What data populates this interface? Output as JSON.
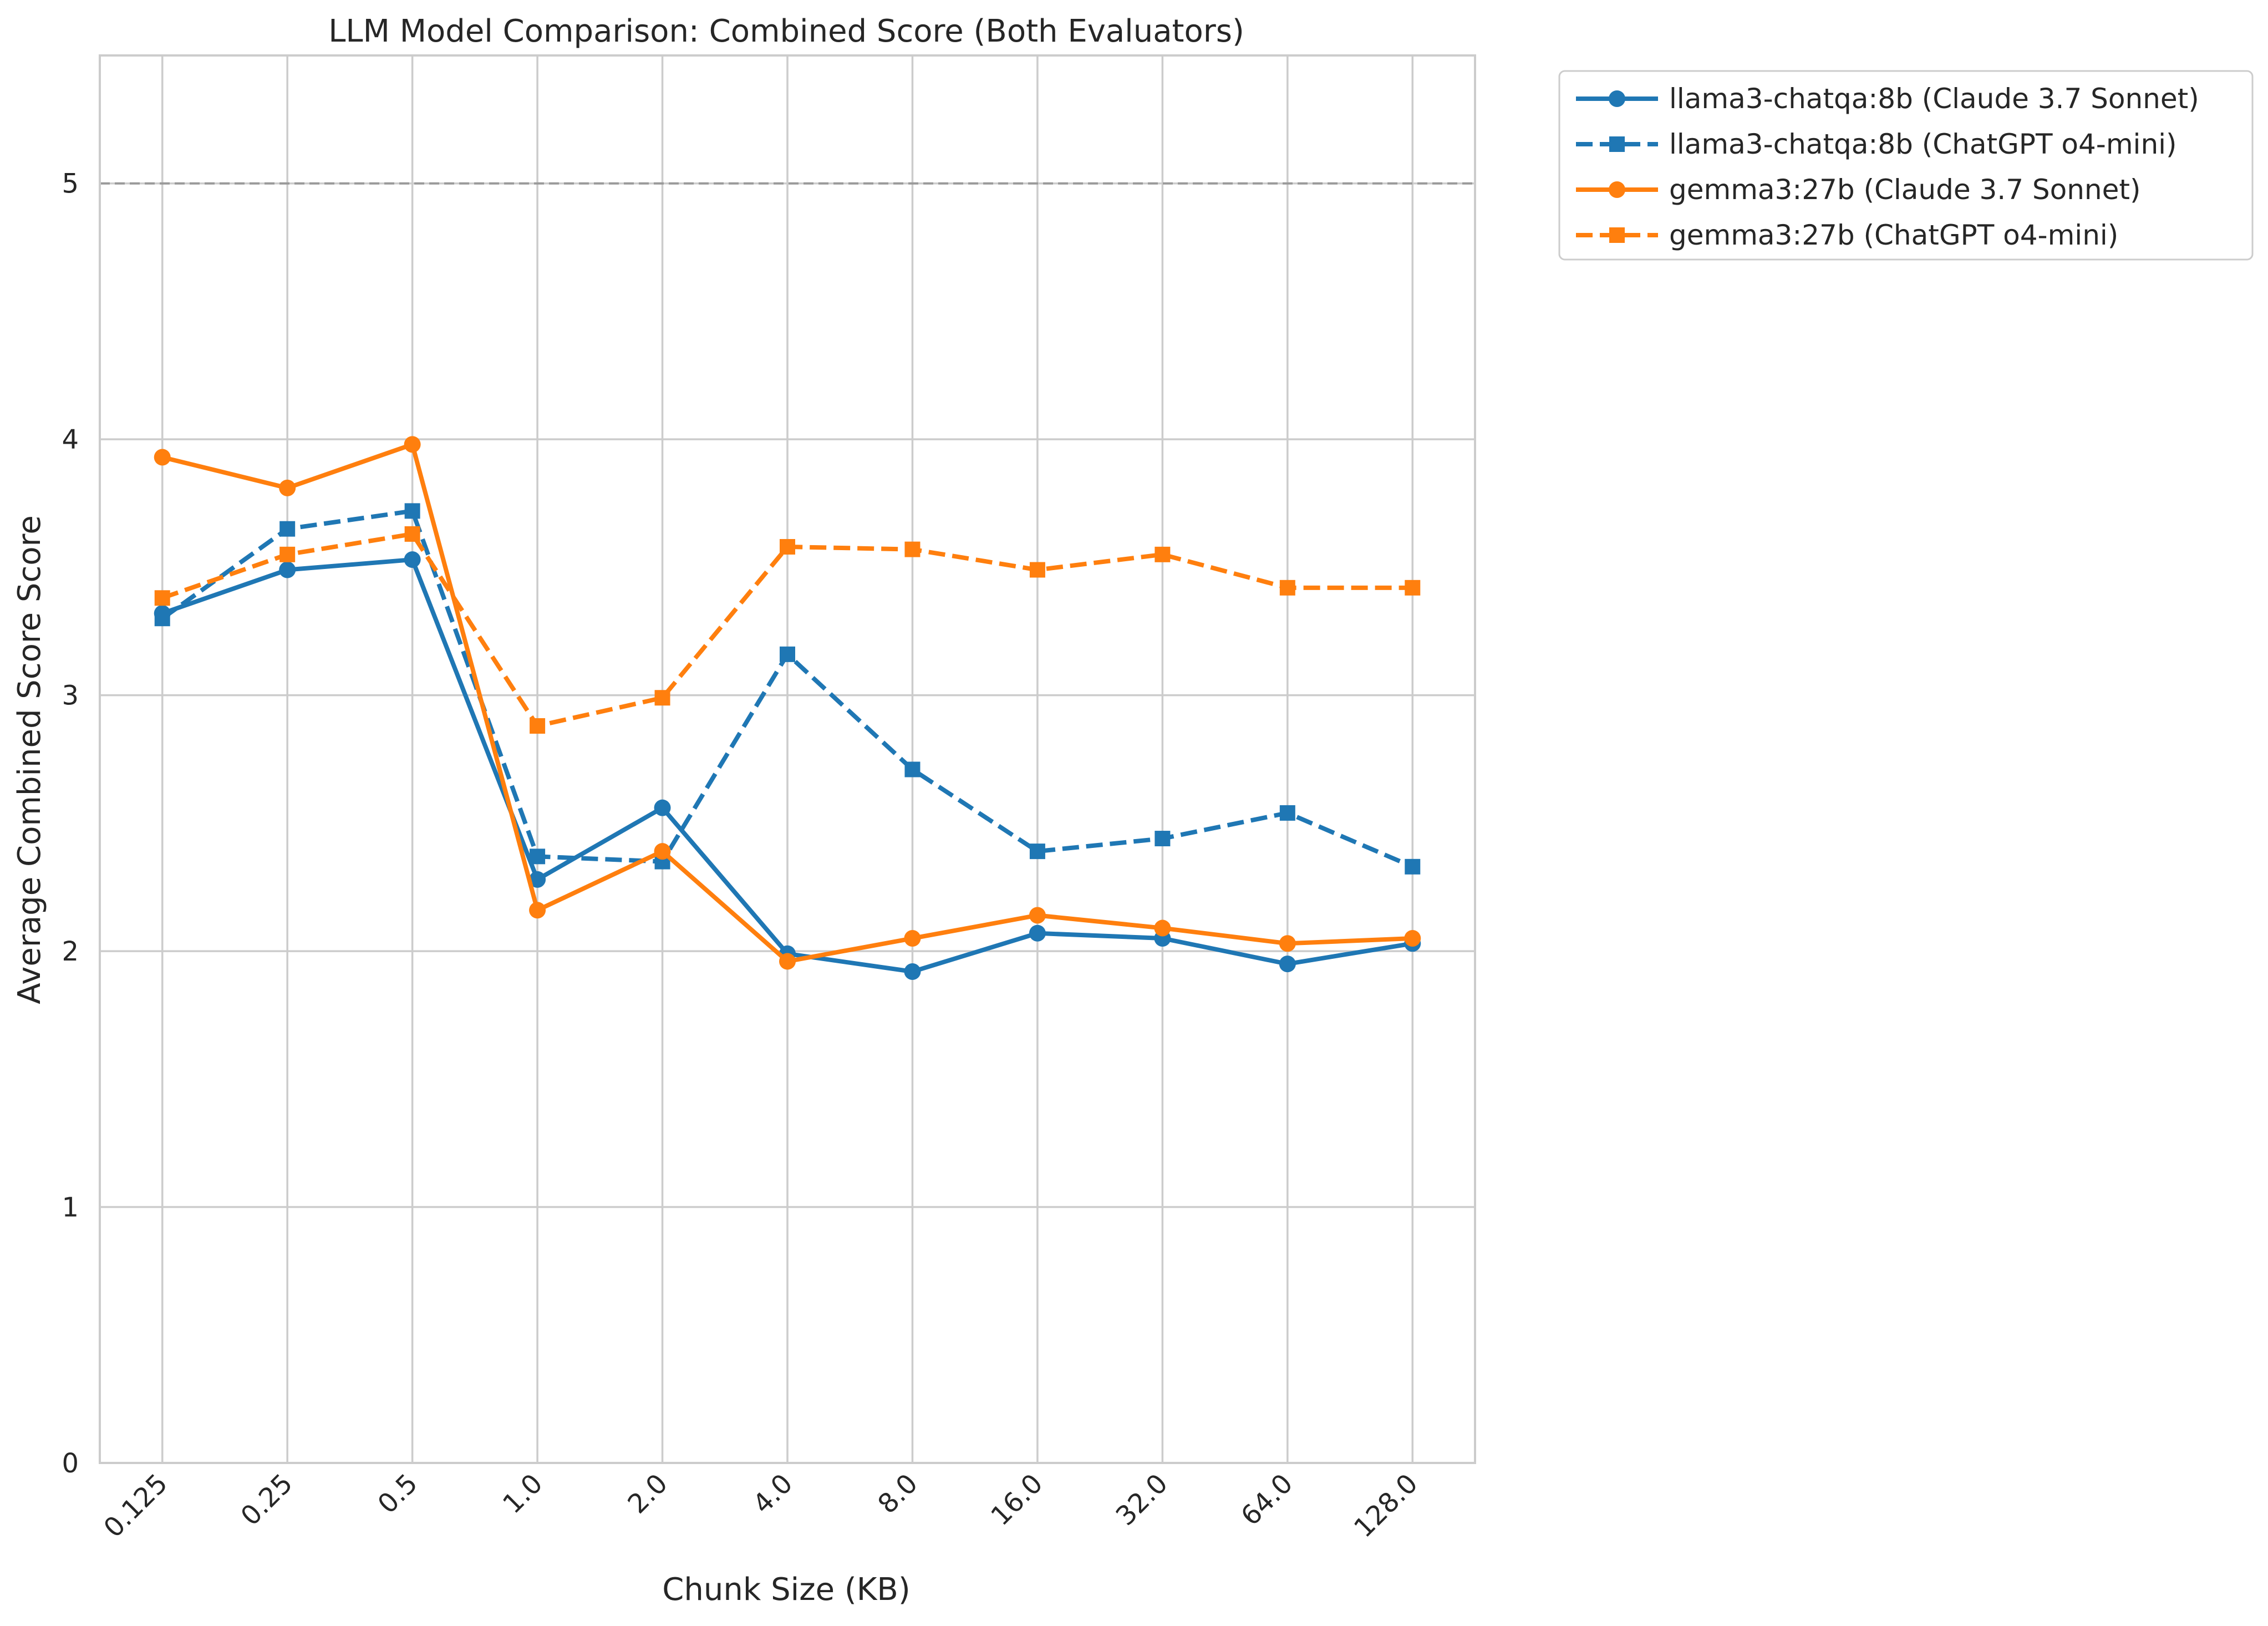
{
  "chart_data": {
    "type": "line",
    "title": "LLM Model Comparison: Combined Score (Both Evaluators)",
    "xlabel": "Chunk Size (KB)",
    "ylabel": "Average Combined Score Score",
    "categories": [
      "0.125",
      "0.25",
      "0.5",
      "1.0",
      "2.0",
      "4.0",
      "8.0",
      "16.0",
      "32.0",
      "64.0",
      "128.0"
    ],
    "ylim": [
      0,
      5.5
    ],
    "yticks": [
      "0",
      "1",
      "2",
      "3",
      "4",
      "5"
    ],
    "grid": true,
    "reference_line": {
      "y": 5,
      "style": "dashed",
      "color": "#999999"
    },
    "legend_placement": "outside upper right",
    "series": [
      {
        "name": "llama3-chatqa:8b (Claude 3.7 Sonnet)",
        "color": "#1f77b4",
        "linestyle": "solid",
        "marker": "circle",
        "values": [
          3.32,
          3.49,
          3.53,
          2.28,
          2.56,
          1.99,
          1.92,
          2.07,
          2.05,
          1.95,
          2.03
        ]
      },
      {
        "name": "llama3-chatqa:8b (ChatGPT o4-mini)",
        "color": "#1f77b4",
        "linestyle": "dashed",
        "marker": "square",
        "values": [
          3.3,
          3.65,
          3.72,
          2.37,
          2.35,
          3.16,
          2.71,
          2.39,
          2.44,
          2.54,
          2.33
        ]
      },
      {
        "name": "gemma3:27b (Claude 3.7 Sonnet)",
        "color": "#ff7f0e",
        "linestyle": "solid",
        "marker": "circle",
        "values": [
          3.93,
          3.81,
          3.98,
          2.16,
          2.39,
          1.96,
          2.05,
          2.14,
          2.09,
          2.03,
          2.05
        ]
      },
      {
        "name": "gemma3:27b (ChatGPT o4-mini)",
        "color": "#ff7f0e",
        "linestyle": "dashed",
        "marker": "square",
        "values": [
          3.38,
          3.55,
          3.63,
          2.88,
          2.99,
          3.58,
          3.57,
          3.49,
          3.55,
          3.42,
          3.42
        ]
      }
    ]
  }
}
